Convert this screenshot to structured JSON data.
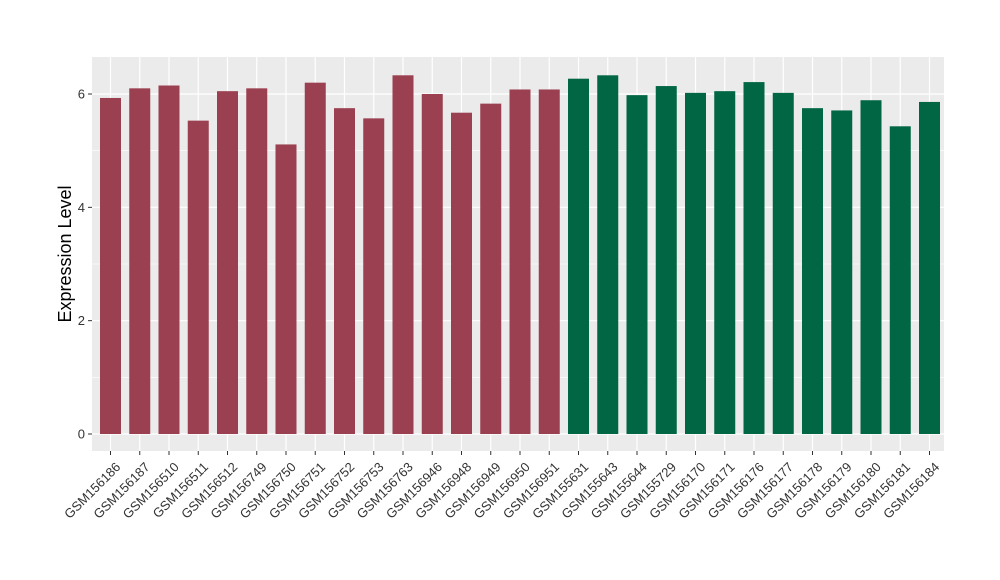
{
  "chart_data": {
    "type": "bar",
    "title": "",
    "xlabel": "",
    "ylabel": "Expression Level",
    "ylim": [
      0,
      6.6
    ],
    "yticks": [
      0,
      2,
      4,
      6
    ],
    "grid": true,
    "legend": "none",
    "categories": [
      "GSM156186",
      "GSM156187",
      "GSM156510",
      "GSM156511",
      "GSM156512",
      "GSM156749",
      "GSM156750",
      "GSM156751",
      "GSM156752",
      "GSM156753",
      "GSM156763",
      "GSM156946",
      "GSM156948",
      "GSM156949",
      "GSM156950",
      "GSM156951",
      "GSM155631",
      "GSM155643",
      "GSM155644",
      "GSM155729",
      "GSM156170",
      "GSM156171",
      "GSM156176",
      "GSM156177",
      "GSM156178",
      "GSM156179",
      "GSM156180",
      "GSM156181",
      "GSM156184"
    ],
    "values": [
      5.93,
      6.1,
      6.15,
      5.53,
      6.05,
      6.1,
      5.11,
      6.2,
      5.75,
      5.57,
      6.33,
      6.0,
      5.67,
      5.83,
      6.08,
      6.08,
      6.27,
      6.33,
      5.98,
      6.14,
      6.02,
      6.05,
      6.21,
      6.02,
      5.75,
      5.71,
      5.89,
      5.43,
      5.86
    ],
    "groups": [
      0,
      0,
      0,
      0,
      0,
      0,
      0,
      0,
      0,
      0,
      0,
      0,
      0,
      0,
      0,
      0,
      1,
      1,
      1,
      1,
      1,
      1,
      1,
      1,
      1,
      1,
      1,
      1,
      1
    ],
    "colors": [
      "#9b4050",
      "#006643"
    ],
    "panel_background": "#ebebeb",
    "grid_color": "#ffffff"
  }
}
